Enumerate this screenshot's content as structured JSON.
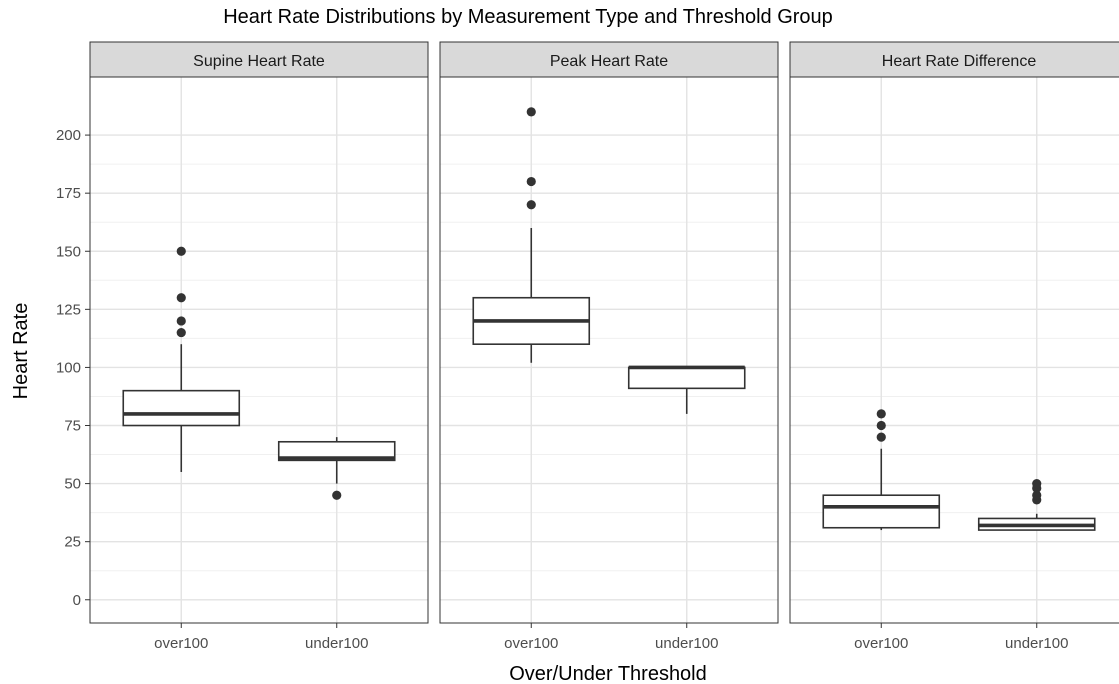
{
  "chart_data": {
    "type": "boxplot",
    "title": "Heart Rate Distributions by Measurement Type and Threshold Group",
    "xlabel": "Over/Under Threshold",
    "ylabel": "Heart Rate",
    "ylim": [
      -10,
      225
    ],
    "yticks": [
      0,
      25,
      50,
      75,
      100,
      125,
      150,
      175,
      200
    ],
    "categories": [
      "over100",
      "under100"
    ],
    "grid": true,
    "panels": [
      {
        "name": "Supine Heart Rate",
        "boxes": [
          {
            "category": "over100",
            "min": 55,
            "q1": 75,
            "median": 80,
            "q3": 90,
            "max": 110,
            "outliers": [
              115,
              120,
              130,
              150
            ]
          },
          {
            "category": "under100",
            "min": 50,
            "q1": 60,
            "median": 61,
            "q3": 68,
            "max": 70,
            "outliers": [
              45
            ]
          }
        ]
      },
      {
        "name": "Peak Heart Rate",
        "boxes": [
          {
            "category": "over100",
            "min": 102,
            "q1": 110,
            "median": 120,
            "q3": 130,
            "max": 160,
            "outliers": [
              170,
              180,
              210
            ]
          },
          {
            "category": "under100",
            "min": 80,
            "q1": 91,
            "median": 100,
            "q3": 100,
            "max": 100,
            "outliers": []
          }
        ]
      },
      {
        "name": "Heart Rate Difference",
        "boxes": [
          {
            "category": "over100",
            "min": 30,
            "q1": 31,
            "median": 40,
            "q3": 45,
            "max": 65,
            "outliers": [
              70,
              75,
              80
            ]
          },
          {
            "category": "under100",
            "min": 30,
            "q1": 30,
            "median": 32,
            "q3": 35,
            "max": 37,
            "outliers": [
              43,
              45,
              48,
              50
            ]
          }
        ]
      }
    ]
  }
}
